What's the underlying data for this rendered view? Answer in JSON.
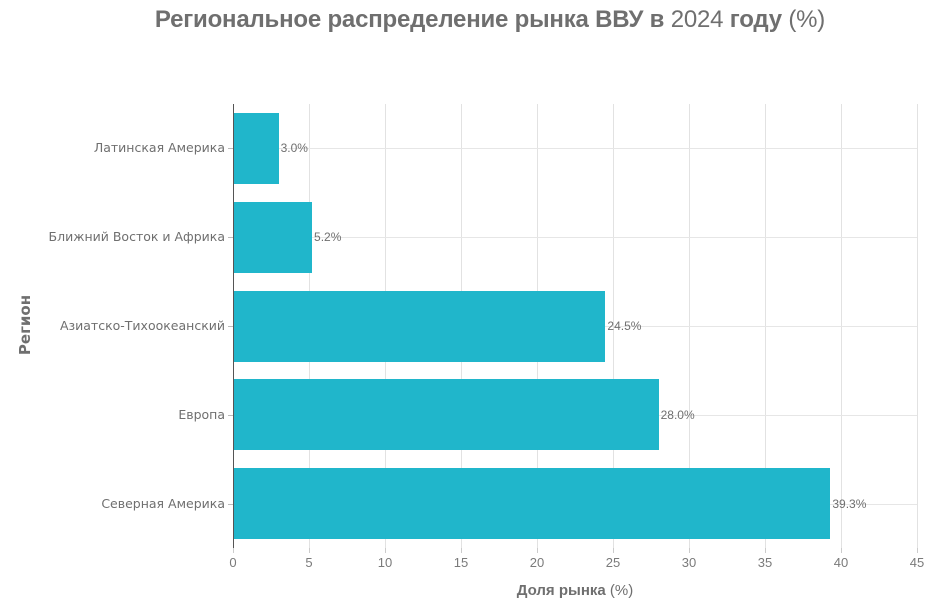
{
  "title": {
    "bold_part": "Региональное распределение рынка ВВУ в",
    "year": "2024",
    "bold_part2": "году",
    "unit": "(%)"
  },
  "axes": {
    "xlabel_bold": "Доля рынка",
    "xlabel_unit": "(%)",
    "ylabel": "Регион",
    "xticks": [
      "0",
      "5",
      "10",
      "15",
      "20",
      "25",
      "30",
      "35",
      "40",
      "45"
    ]
  },
  "bars": [
    {
      "label": "Латинская Америка",
      "value_label": "3.0%"
    },
    {
      "label": "Ближний Восток и Африка",
      "value_label": "5.2%"
    },
    {
      "label": "Азиатско-Тихоокеанский",
      "value_label": "24.5%"
    },
    {
      "label": "Европа",
      "value_label": "28.0%"
    },
    {
      "label": "Северная Америка",
      "value_label": "39.3%"
    }
  ],
  "colors": {
    "bar": "#20b6cb",
    "grid": "#e2e2e2",
    "text": "#6f6f6f"
  },
  "chart_data": {
    "type": "bar",
    "orientation": "horizontal",
    "title": "Региональное распределение рынка ВВУ в 2024 году (%)",
    "xlabel": "Доля рынка (%)",
    "ylabel": "Регион",
    "categories": [
      "Латинская Америка",
      "Ближний Восток и Африка",
      "Азиатско-Тихоокеанский",
      "Европа",
      "Северная Америка"
    ],
    "values": [
      3.0,
      5.2,
      24.5,
      28.0,
      39.3
    ],
    "data_labels": [
      "3.0%",
      "5.2%",
      "24.5%",
      "28.0%",
      "39.3%"
    ],
    "xlim": [
      0,
      45
    ],
    "xticks": [
      0,
      5,
      10,
      15,
      20,
      25,
      30,
      35,
      40,
      45
    ],
    "grid": true,
    "legend": null
  }
}
